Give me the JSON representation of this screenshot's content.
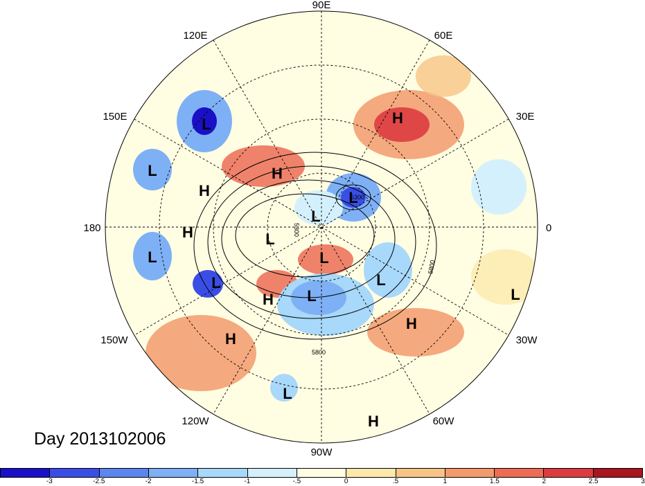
{
  "date_label": "Day 2013102006",
  "longitude_labels": [
    "90E",
    "60E",
    "30E",
    "0",
    "30W",
    "60W",
    "90W",
    "120W",
    "150W",
    "180",
    "150E",
    "120E"
  ],
  "colorbar": {
    "ticks": [
      "-3",
      "-2.5",
      "-2",
      "-1.5",
      "-1",
      "-.5",
      "0",
      ".5",
      "1",
      "1.5",
      "2",
      "2.5",
      "3"
    ],
    "colors": [
      "#1a10c8",
      "#3a4ee6",
      "#5a86ee",
      "#7eb0f5",
      "#a8d8fa",
      "#d4f0fc",
      "#fffde2",
      "#fce8ac",
      "#f8c486",
      "#f39a6c",
      "#ec6c56",
      "#dc3c40",
      "#a81620"
    ]
  },
  "pressure_centers": [
    {
      "type": "L"
    },
    {
      "type": "L"
    },
    {
      "type": "H"
    },
    {
      "type": "H"
    },
    {
      "type": "L"
    },
    {
      "type": "H"
    },
    {
      "type": "H"
    },
    {
      "type": "L"
    },
    {
      "type": "L"
    },
    {
      "type": "L"
    },
    {
      "type": "L"
    },
    {
      "type": "L"
    },
    {
      "type": "L"
    },
    {
      "type": "L"
    },
    {
      "type": "H"
    },
    {
      "type": "H"
    },
    {
      "type": "L"
    },
    {
      "type": "H"
    },
    {
      "type": "L"
    },
    {
      "type": "H"
    }
  ],
  "contour_labels": [
    "5300",
    "5800",
    "5800",
    "5300"
  ]
}
